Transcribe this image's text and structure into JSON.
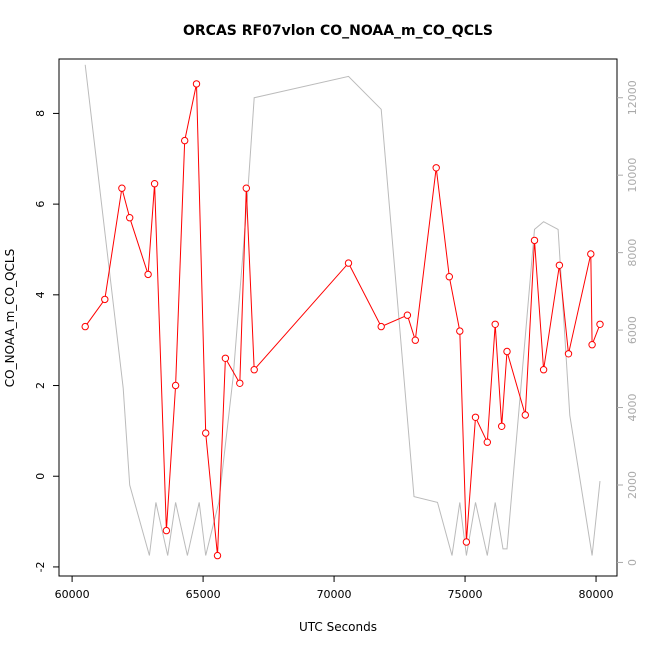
{
  "chart_data": {
    "type": "line",
    "title": "ORCAS RF07vlon CO_NOAA_m_CO_QCLS",
    "xlabel": "UTC Seconds",
    "ylabel": "CO_NOAA_m_CO_QCLS",
    "xlim": [
      59500,
      80800
    ],
    "ylim": [
      -2.2,
      9.2
    ],
    "y2lim": [
      -350,
      13000
    ],
    "x_ticks": [
      60000,
      65000,
      70000,
      75000,
      80000
    ],
    "x_tick_labels": [
      "60000",
      "65000",
      "70000",
      "75000",
      "80000"
    ],
    "y_ticks": [
      -2,
      0,
      2,
      4,
      6,
      8
    ],
    "y_tick_labels": [
      "-2",
      "0",
      "2",
      "4",
      "6",
      "8"
    ],
    "y2_ticks": [
      0,
      2000,
      4000,
      6000,
      8000,
      10000,
      12000
    ],
    "y2_tick_labels": [
      "0",
      "2000",
      "4000",
      "6000",
      "8000",
      "10000",
      "12000"
    ],
    "grid": false,
    "series": [
      {
        "color": "#ff0000",
        "axis": "left",
        "markers": true,
        "x": [
          60500,
          61250,
          61900,
          62200,
          62900,
          63150,
          63600,
          63950,
          64300,
          64750,
          65100,
          65550,
          65850,
          66400,
          66650,
          66950,
          70550,
          71800,
          72800,
          73100,
          73900,
          74400,
          74800,
          75050,
          75400,
          75850,
          76150,
          76400,
          76600,
          77300,
          77650,
          78000,
          78600,
          78950,
          79800,
          79850,
          80150
        ],
        "y": [
          3.3,
          3.9,
          6.35,
          5.7,
          4.45,
          6.45,
          -1.2,
          2.0,
          7.4,
          8.65,
          0.95,
          -1.75,
          2.6,
          2.05,
          6.35,
          2.35,
          4.7,
          3.3,
          3.55,
          3.0,
          6.8,
          4.4,
          3.2,
          -1.45,
          1.3,
          0.75,
          3.35,
          1.1,
          2.75,
          1.35,
          5.2,
          2.35,
          4.65,
          2.7,
          4.9,
          2.9,
          3.35
        ]
      },
      {
        "color": "#bbbbbb",
        "axis": "right",
        "markers": false,
        "x": [
          60500,
          61950,
          62200,
          62950,
          63200,
          63650,
          63950,
          64400,
          64850,
          65100,
          65600,
          66150,
          66700,
          66950,
          70550,
          71800,
          73050,
          73950,
          74500,
          74800,
          75050,
          75400,
          75850,
          76150,
          76450,
          76600,
          77650,
          78000,
          78550,
          79000,
          79850,
          80150
        ],
        "y": [
          12850,
          4500,
          2000,
          180,
          1550,
          180,
          1550,
          180,
          1550,
          180,
          1550,
          4800,
          9500,
          12000,
          12550,
          11700,
          1700,
          1550,
          180,
          1550,
          180,
          1550,
          180,
          1550,
          350,
          350,
          8600,
          8800,
          8600,
          3800,
          180,
          2100
        ]
      }
    ]
  }
}
